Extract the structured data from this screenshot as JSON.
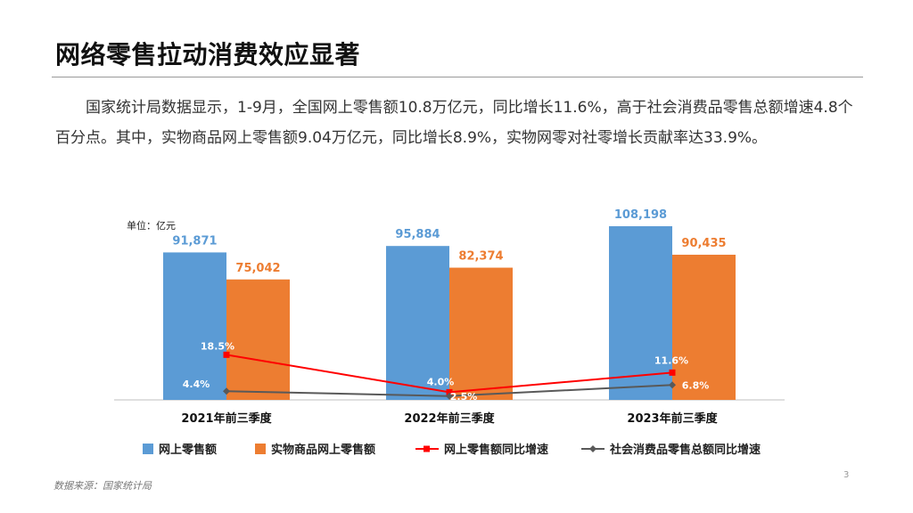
{
  "title": "网络零售拉动消费效应显著",
  "paragraph": "国家统计局数据显示，1-9月，全国网上零售额10.8万亿元，同比增长11.6%，高于社会消费品零售总额增速4.8个百分点。其中，实物商品网上零售额9.04万亿元，同比增长8.9%，实物网零对社零增长贡献率达33.9%。",
  "page_number": "3",
  "source": "数据来源：国家统计局",
  "colors": {
    "online": "#5b9bd5",
    "physical": "#ed7d31",
    "online_growth": "#ff0000",
    "retail_growth": "#595959"
  },
  "chart_data": {
    "type": "bar",
    "unit_label": "单位：亿元",
    "categories": [
      "2021年前三季度",
      "2022年前三季度",
      "2023年前三季度"
    ],
    "bar_series": [
      {
        "name": "网上零售额",
        "values": [
          91871,
          95884,
          108198
        ],
        "labels": [
          "91,871",
          "95,884",
          "108,198"
        ],
        "color": "#5b9bd5"
      },
      {
        "name": "实物商品网上零售额",
        "values": [
          75042,
          82374,
          90435
        ],
        "labels": [
          "75,042",
          "82,374",
          "90,435"
        ],
        "color": "#ed7d31"
      }
    ],
    "line_series": [
      {
        "name": "网上零售额同比增速",
        "values": [
          18.5,
          4.0,
          11.6
        ],
        "labels": [
          "18.5%",
          "4.0%",
          "11.6%"
        ],
        "color": "#ff0000",
        "marker": "square"
      },
      {
        "name": "社会消费品零售总额同比增速",
        "values": [
          4.4,
          2.5,
          6.8
        ],
        "labels": [
          "4.4%",
          "2.5%",
          "6.8%"
        ],
        "color": "#595959",
        "marker": "diamond"
      }
    ],
    "legend_position": "bottom",
    "grid": false
  }
}
